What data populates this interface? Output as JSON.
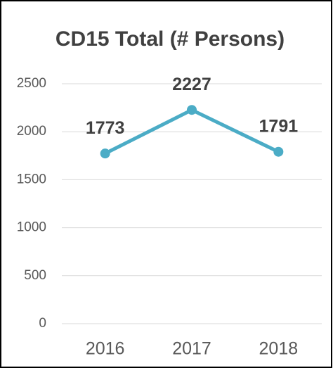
{
  "chart_data": {
    "type": "line",
    "title": "CD15 Total (# Persons)",
    "categories": [
      "2016",
      "2017",
      "2018"
    ],
    "series": [
      {
        "name": "CD15 Total",
        "color": "#4bacc6",
        "values": [
          1773,
          2227,
          1791
        ]
      }
    ],
    "ylim": [
      0,
      2500
    ],
    "yticks": [
      0,
      500,
      1000,
      1500,
      2000,
      2500
    ],
    "grid": true
  }
}
